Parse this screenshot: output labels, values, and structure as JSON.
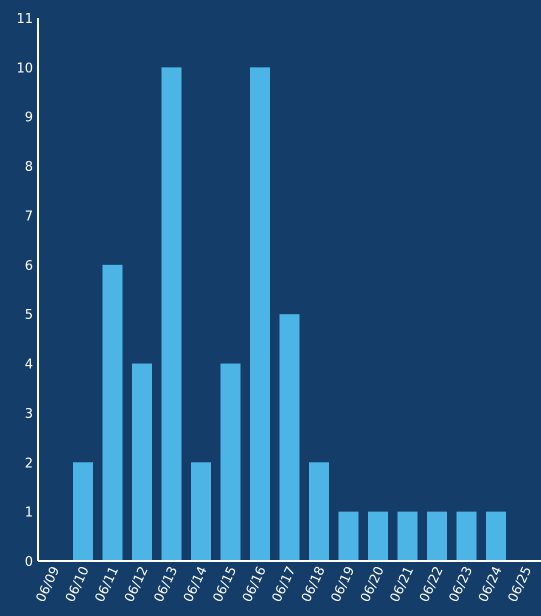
{
  "chart_data": {
    "type": "bar",
    "title": "",
    "xlabel": "",
    "ylabel": "",
    "categories": [
      "06/09",
      "06/10",
      "06/11",
      "06/12",
      "06/13",
      "06/14",
      "06/15",
      "06/16",
      "06/17",
      "06/18",
      "06/19",
      "06/20",
      "06/21",
      "06/22",
      "06/23",
      "06/24",
      "06/25"
    ],
    "values": [
      0,
      2,
      6,
      4,
      10,
      2,
      4,
      10,
      5,
      2,
      1,
      1,
      1,
      1,
      1,
      1,
      0
    ],
    "ylim": [
      0,
      11
    ],
    "yticks": [
      0,
      1,
      2,
      3,
      4,
      5,
      6,
      7,
      8,
      9,
      10,
      11
    ],
    "grid": false,
    "colors": {
      "background": "#143d69",
      "bar": "#4db5e6",
      "text": "#ffffff"
    }
  }
}
